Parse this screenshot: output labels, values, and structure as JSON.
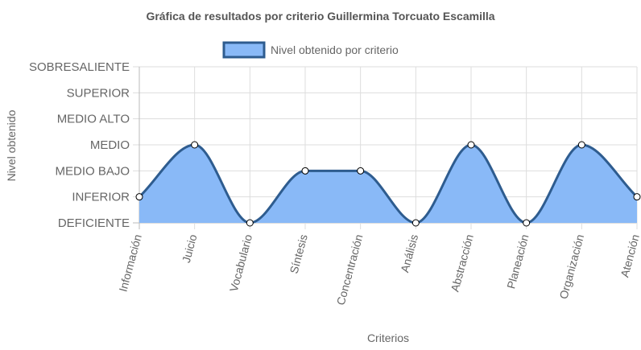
{
  "chart_data": {
    "type": "area",
    "title": "Gráfica de resultados por criterio Guillermina Torcuato Escamilla",
    "xlabel": "Criterios",
    "ylabel": "Nivel obtenido",
    "categories": [
      "Información",
      "Juicio",
      "Vocabulario",
      "Síntesis",
      "Concentración",
      "Análisis",
      "Abstracción",
      "Planeación",
      "Organización",
      "Atención"
    ],
    "y_levels": [
      "DEFICIENTE",
      "INFERIOR",
      "MEDIO BAJO",
      "MEDIO",
      "MEDIO ALTO",
      "SUPERIOR",
      "SOBRESALIENTE"
    ],
    "ylim": [
      0,
      6
    ],
    "grid": true,
    "legend_position": "top",
    "series": [
      {
        "name": "Nivel obtenido por criterio",
        "values": [
          1,
          3,
          0,
          2,
          2,
          0,
          3,
          0,
          3,
          1
        ],
        "value_labels": [
          "INFERIOR",
          "MEDIO",
          "DEFICIENTE",
          "MEDIO BAJO",
          "MEDIO BAJO",
          "DEFICIENTE",
          "MEDIO",
          "DEFICIENTE",
          "MEDIO",
          "INFERIOR"
        ],
        "fill_color": "#89b9f7",
        "line_color": "#2e5c8f"
      }
    ]
  },
  "colors": {
    "grid": "#dddddd",
    "axis": "#bbbbbb",
    "point_fill": "#ffffff",
    "point_stroke": "#000000"
  }
}
